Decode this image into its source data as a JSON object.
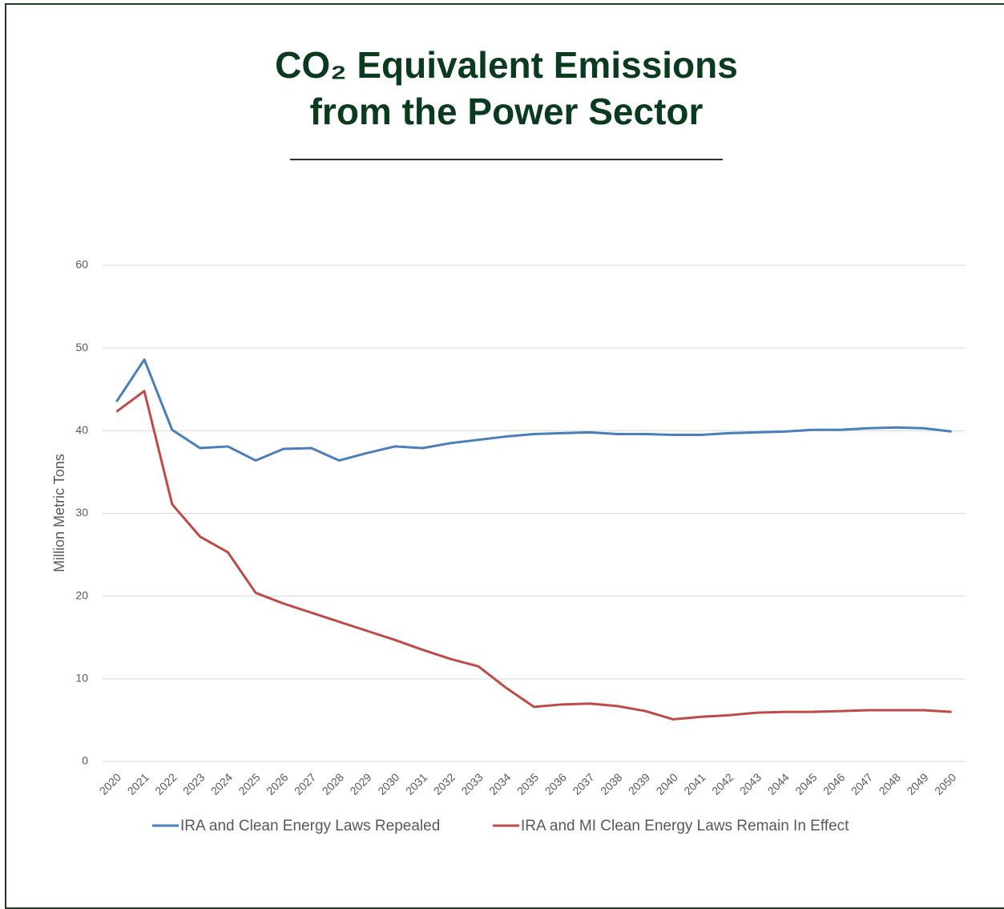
{
  "chart_data": {
    "type": "line",
    "title": "CO₂ Equivalent Emissions from the Power Sector",
    "y_label": "Million Metric Tons",
    "categories": [
      "2020",
      "2021",
      "2022",
      "2023",
      "2024",
      "2025",
      "2026",
      "2027",
      "2028",
      "2029",
      "2030",
      "2031",
      "2032",
      "2033",
      "2034",
      "2035",
      "2036",
      "2037",
      "2038",
      "2039",
      "2040",
      "2041",
      "2042",
      "2043",
      "2044",
      "2045",
      "2046",
      "2047",
      "2048",
      "2049",
      "2050"
    ],
    "series": [
      {
        "name": "IRA and Clean Energy Laws Repealed",
        "color": "#4a7ebb",
        "values": [
          43.5,
          48.6,
          40.1,
          37.9,
          38.1,
          36.4,
          37.8,
          37.9,
          36.4,
          37.3,
          38.1,
          37.9,
          38.5,
          38.9,
          39.3,
          39.6,
          39.7,
          39.8,
          39.6,
          39.6,
          39.5,
          39.5,
          39.7,
          39.8,
          39.9,
          40.1,
          40.1,
          40.3,
          40.4,
          40.3,
          39.9
        ]
      },
      {
        "name": "IRA and MI Clean Energy Laws Remain In Effect",
        "color": "#be4b48",
        "values": [
          42.3,
          44.8,
          31.1,
          27.2,
          25.3,
          20.4,
          19.1,
          18.0,
          16.9,
          15.8,
          14.7,
          13.5,
          12.4,
          11.5,
          8.9,
          6.6,
          6.9,
          7.0,
          6.7,
          6.1,
          5.1,
          5.4,
          5.6,
          5.9,
          6.0,
          6.0,
          6.1,
          6.2,
          6.2,
          6.2,
          6.0
        ]
      }
    ],
    "ylim": [
      0,
      60
    ],
    "yticks": [
      0,
      10,
      20,
      30,
      40,
      50,
      60
    ],
    "grid": true,
    "legend": "bottom"
  }
}
